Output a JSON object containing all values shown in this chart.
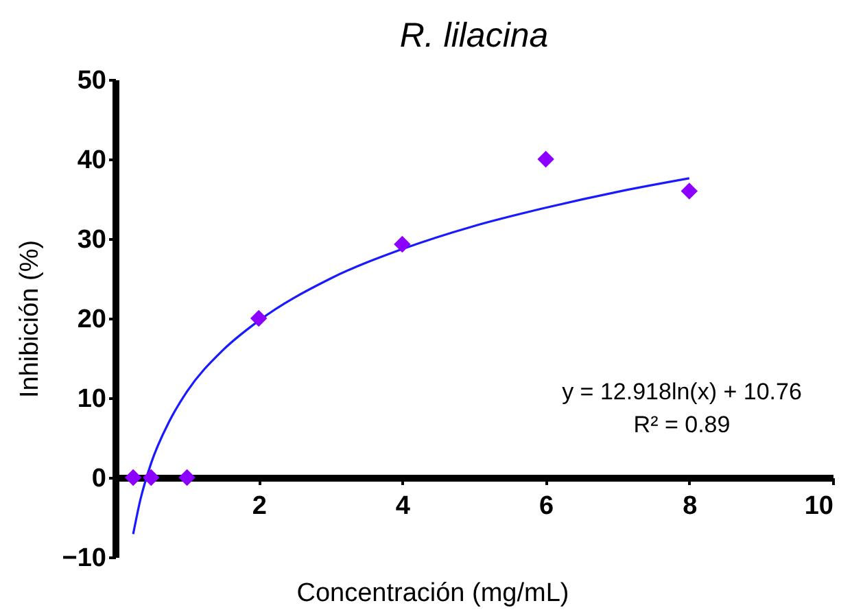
{
  "chart_data": {
    "type": "scatter",
    "title": "R. lilacina",
    "xlabel": "Concentración (mg/mL)",
    "ylabel": "Inhibición (%)",
    "xlim": [
      0,
      10
    ],
    "xticks": [
      2,
      4,
      6,
      8,
      10
    ],
    "ylim": [
      -10,
      50
    ],
    "yticks": [
      -10,
      0,
      10,
      20,
      30,
      40,
      50
    ],
    "annotations": [
      "y = 12.918ln(x) +  10.76",
      "R² = 0.89"
    ],
    "series": [
      {
        "marker": "diamond",
        "color": "#8b00ff",
        "x": [
          0.25,
          0.5,
          1,
          2,
          4,
          6,
          8
        ],
        "values": [
          0,
          0,
          0,
          20,
          29.3,
          40,
          36
        ]
      },
      {
        "type": "line",
        "color": "#1a1aff",
        "x": [
          0.25,
          0.35,
          0.5,
          0.75,
          1,
          1.5,
          2,
          3,
          4,
          5,
          6,
          7,
          8
        ],
        "values": [
          -7.1,
          -2.8,
          1.8,
          7.0,
          10.8,
          16.0,
          19.7,
          25.0,
          28.7,
          31.6,
          33.9,
          35.9,
          37.6
        ]
      }
    ]
  }
}
